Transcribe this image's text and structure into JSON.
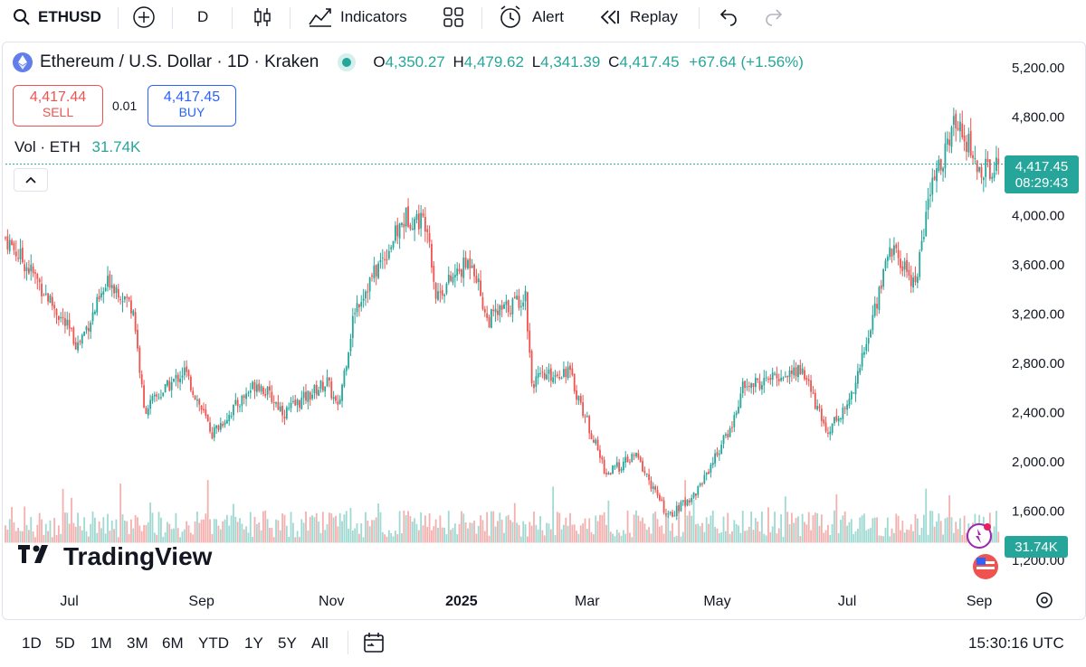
{
  "toolbar": {
    "symbol": "ETHUSD",
    "interval": "D",
    "indicators_label": "Indicators",
    "alert_label": "Alert",
    "replay_label": "Replay",
    "icons": [
      "search-icon",
      "add-symbol-icon",
      "candles-icon",
      "indicators-icon",
      "layouts-icon",
      "alert-icon",
      "replay-icon",
      "undo-icon",
      "redo-icon"
    ]
  },
  "legend": {
    "title": "Ethereum / U.S. Dollar · 1D · Kraken",
    "o_label": "O",
    "o": "4,350.27",
    "h_label": "H",
    "h": "4,479.62",
    "l_label": "L",
    "l": "4,341.39",
    "c_label": "C",
    "c": "4,417.45",
    "change": "+67.64 (+1.56%)",
    "vol_label": "Vol · ETH",
    "vol_value": "31.74K"
  },
  "trade": {
    "sell_price": "4,417.44",
    "sell_label": "SELL",
    "spread": "0.01",
    "buy_price": "4,417.45",
    "buy_label": "BUY"
  },
  "price_scale": {
    "last_price": "4,417.45",
    "countdown": "08:29:43",
    "volume_badge": "31.74K"
  },
  "watermark": "TradingView",
  "colors": {
    "up": "#26a69a",
    "down": "#ef5350",
    "buy": "#2962ff",
    "up_volume": "#9fd9d2",
    "down_volume": "#f4b0ae",
    "text": "#131722"
  },
  "chart_data": {
    "type": "candlestick",
    "title": "Ethereum / U.S. Dollar · 1D · Kraken",
    "ylim": [
      1150,
      5350
    ],
    "y_ticks": [
      "5,200.00",
      "4,800.00",
      "4,000.00",
      "3,600.00",
      "3,200.00",
      "2,800.00",
      "2,400.00",
      "2,000.00",
      "1,600.00",
      "1,200.00"
    ],
    "x_ticks": [
      "Jul",
      "Sep",
      "Nov",
      "2025",
      "Mar",
      "May",
      "Jul",
      "Sep"
    ],
    "last_price": 4417.45,
    "series": [
      {
        "name": "ETHUSD",
        "close_path": [
          {
            "x": "2024-06-01",
            "close": 3820
          },
          {
            "x": "2024-06-15",
            "close": 3500
          },
          {
            "x": "2024-07-05",
            "close": 2950
          },
          {
            "x": "2024-07-20",
            "close": 3480
          },
          {
            "x": "2024-07-31",
            "close": 3250
          },
          {
            "x": "2024-08-05",
            "close": 2420
          },
          {
            "x": "2024-08-24",
            "close": 2740
          },
          {
            "x": "2024-09-06",
            "close": 2230
          },
          {
            "x": "2024-09-27",
            "close": 2650
          },
          {
            "x": "2024-10-10",
            "close": 2400
          },
          {
            "x": "2024-10-30",
            "close": 2650
          },
          {
            "x": "2024-11-04",
            "close": 2420
          },
          {
            "x": "2024-11-12",
            "close": 3250
          },
          {
            "x": "2024-12-06",
            "close": 3990
          },
          {
            "x": "2024-12-16",
            "close": 3950
          },
          {
            "x": "2024-12-20",
            "close": 3350
          },
          {
            "x": "2025-01-06",
            "close": 3650
          },
          {
            "x": "2025-01-13",
            "close": 3150
          },
          {
            "x": "2025-01-31",
            "close": 3350
          },
          {
            "x": "2025-02-03",
            "close": 2650
          },
          {
            "x": "2025-02-20",
            "close": 2750
          },
          {
            "x": "2025-03-10",
            "close": 1900
          },
          {
            "x": "2025-03-24",
            "close": 2050
          },
          {
            "x": "2025-04-08",
            "close": 1550
          },
          {
            "x": "2025-04-21",
            "close": 1750
          },
          {
            "x": "2025-05-08",
            "close": 2300
          },
          {
            "x": "2025-05-13",
            "close": 2600
          },
          {
            "x": "2025-06-10",
            "close": 2750
          },
          {
            "x": "2025-06-21",
            "close": 2250
          },
          {
            "x": "2025-07-01",
            "close": 2450
          },
          {
            "x": "2025-07-10",
            "close": 2950
          },
          {
            "x": "2025-07-21",
            "close": 3750
          },
          {
            "x": "2025-08-02",
            "close": 3450
          },
          {
            "x": "2025-08-09",
            "close": 4200
          },
          {
            "x": "2025-08-22",
            "close": 4800
          },
          {
            "x": "2025-09-01",
            "close": 4350
          },
          {
            "x": "2025-09-10",
            "close": 4417.45
          }
        ]
      }
    ],
    "volume": {
      "name": "Vol · ETH",
      "last": "31.74K"
    }
  },
  "bottom": {
    "ranges": [
      "1D",
      "5D",
      "1M",
      "3M",
      "6M",
      "YTD",
      "1Y",
      "5Y",
      "All"
    ],
    "clock": "15:30:16 UTC"
  }
}
